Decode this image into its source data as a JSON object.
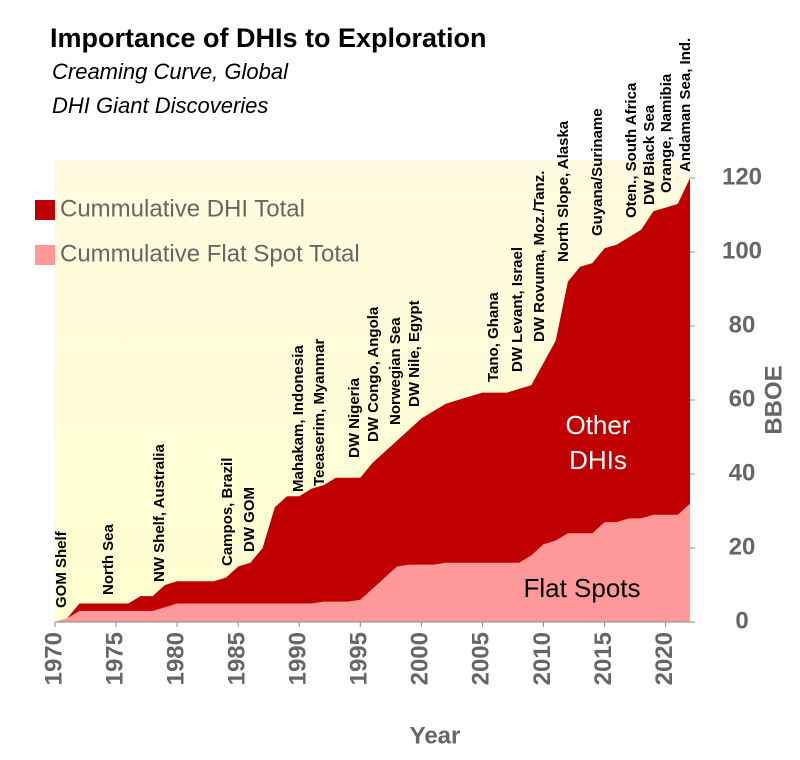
{
  "chart_data": {
    "type": "area",
    "title": "Importance of DHIs to Exploration",
    "subtitle": [
      "Creaming Curve, Global",
      "DHI Giant Discoveries"
    ],
    "x_label": "Year",
    "y_label": "BBOE",
    "x": [
      1970,
      1971,
      1972,
      1973,
      1974,
      1975,
      1976,
      1977,
      1978,
      1979,
      1980,
      1981,
      1982,
      1983,
      1984,
      1985,
      1986,
      1987,
      1988,
      1989,
      1990,
      1991,
      1992,
      1993,
      1994,
      1995,
      1996,
      1997,
      1998,
      1999,
      2000,
      2001,
      2002,
      2003,
      2004,
      2005,
      2006,
      2007,
      2008,
      2009,
      2010,
      2011,
      2012,
      2013,
      2014,
      2015,
      2016,
      2017,
      2018,
      2019,
      2020,
      2021,
      2022
    ],
    "series": [
      {
        "name": "Cummulative DHI Total",
        "color": "#c00000",
        "values": [
          0,
          1,
          5,
          5,
          5,
          5,
          5,
          7,
          7,
          10,
          11,
          11,
          11,
          11,
          12,
          15,
          16,
          20,
          31,
          34,
          34,
          36,
          37,
          39,
          39,
          39,
          43,
          46,
          49,
          52,
          55,
          57,
          59,
          60,
          61,
          62,
          62,
          62,
          63,
          64,
          70,
          76,
          92,
          96,
          97,
          101,
          102,
          104,
          106,
          111,
          112,
          113,
          120
        ]
      },
      {
        "name": "Cummulative Flat Spot Total",
        "color": "#ff9999",
        "values": [
          0,
          1,
          3,
          3,
          3,
          3,
          3,
          3,
          3,
          4,
          5,
          5,
          5,
          5,
          5,
          5,
          5,
          5,
          5,
          5,
          5,
          5,
          5.5,
          5.5,
          5.5,
          6,
          9,
          12,
          15,
          15.5,
          15.5,
          15.5,
          16,
          16,
          16,
          16,
          16,
          16,
          16,
          18,
          21,
          22,
          24,
          24,
          24,
          27,
          27,
          28,
          28,
          29,
          29,
          29,
          32
        ]
      }
    ],
    "xlim": [
      1970,
      2022
    ],
    "xticks": [
      1970,
      1975,
      1980,
      1985,
      1990,
      1995,
      2000,
      2005,
      2010,
      2015,
      2020
    ],
    "ylim": [
      0,
      120
    ],
    "yticks": [
      0,
      20,
      40,
      60,
      80,
      100,
      120
    ],
    "area_labels": [
      "Other",
      "DHIs",
      "Flat Spots"
    ],
    "annotations": [
      "GOM Shelf",
      "North Sea",
      "NW Shelf, Australia",
      "Campos, Brazil",
      "DW GOM",
      "Mahakam, Indonesia",
      "Teeaserim, Myanmar",
      "DW Nigeria",
      "DW Congo, Angola",
      "Norwegian Sea",
      "DW Nile, Egypt",
      "Tano, Ghana",
      "DW Levant, Israel",
      "DW Rovuma, Moz./Tanz.",
      "North Slope, Alaska",
      "Guyana/Suriname",
      "Oten., South Africa",
      "DW Black Sea",
      "Orange, Namibia",
      "Andaman Sea, Ind."
    ]
  }
}
